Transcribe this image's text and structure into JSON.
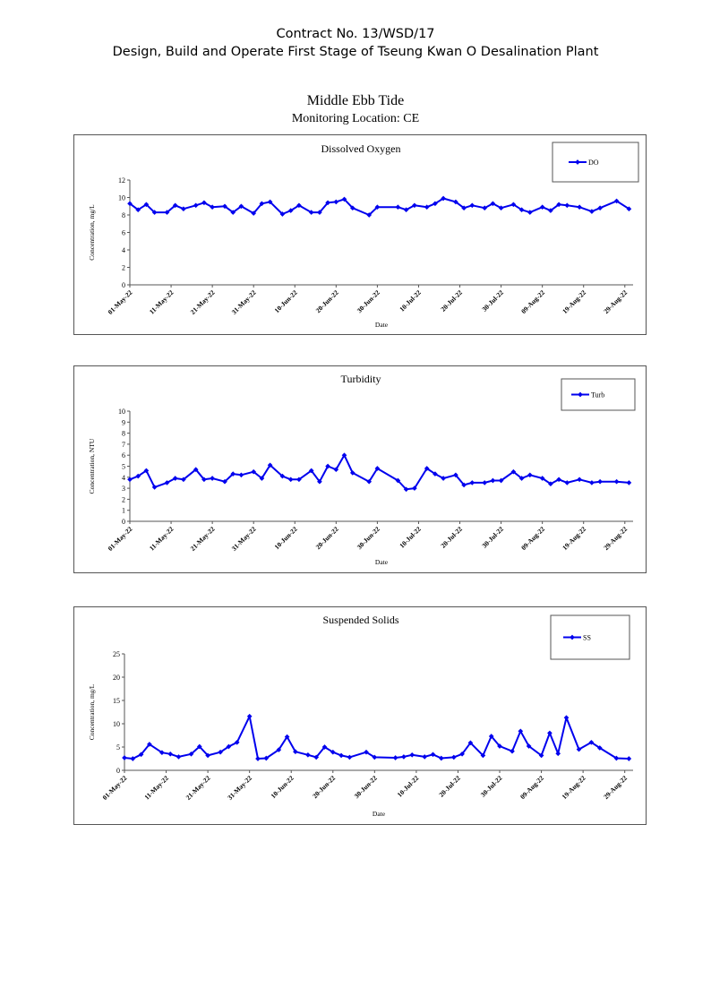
{
  "header": {
    "line1": "Contract No. 13/WSD/17",
    "line2": "Design, Build and Operate First Stage of Tseung Kwan O Desalination Plant"
  },
  "report": {
    "title": "Middle Ebb Tide",
    "subtitle": "Monitoring Location: CE"
  },
  "chart_data": [
    {
      "type": "line",
      "title": "Dissolved Oxygen",
      "xlabel": "Date",
      "ylabel": "Concentration, mg/L",
      "ylim": [
        0,
        12
      ],
      "ytick_step": 2,
      "x_ticks": [
        "01-May-22",
        "11-May-22",
        "21-May-22",
        "31-May-22",
        "10-Jun-22",
        "20-Jun-22",
        "30-Jun-22",
        "10-Jul-22",
        "20-Jul-22",
        "30-Jul-22",
        "09-Aug-22",
        "19-Aug-22",
        "29-Aug-22"
      ],
      "legend_position": "top-right",
      "color": "#0000ee",
      "series": [
        {
          "name": "DO",
          "x": [
            "2022-05-01",
            "2022-05-03",
            "2022-05-05",
            "2022-05-07",
            "2022-05-10",
            "2022-05-12",
            "2022-05-14",
            "2022-05-17",
            "2022-05-19",
            "2022-05-21",
            "2022-05-24",
            "2022-05-26",
            "2022-05-28",
            "2022-05-31",
            "2022-06-02",
            "2022-06-04",
            "2022-06-07",
            "2022-06-09",
            "2022-06-11",
            "2022-06-14",
            "2022-06-16",
            "2022-06-18",
            "2022-06-20",
            "2022-06-22",
            "2022-06-24",
            "2022-06-28",
            "2022-06-30",
            "2022-07-05",
            "2022-07-07",
            "2022-07-09",
            "2022-07-12",
            "2022-07-14",
            "2022-07-16",
            "2022-07-19",
            "2022-07-21",
            "2022-07-23",
            "2022-07-26",
            "2022-07-28",
            "2022-07-30",
            "2022-08-02",
            "2022-08-04",
            "2022-08-06",
            "2022-08-09",
            "2022-08-11",
            "2022-08-13",
            "2022-08-15",
            "2022-08-18",
            "2022-08-21",
            "2022-08-23",
            "2022-08-27",
            "2022-08-30"
          ],
          "y": [
            9.3,
            8.6,
            9.2,
            8.3,
            8.3,
            9.1,
            8.7,
            9.1,
            9.4,
            8.9,
            9.0,
            8.3,
            9.0,
            8.2,
            9.3,
            9.5,
            8.1,
            8.5,
            9.1,
            8.3,
            8.3,
            9.4,
            9.5,
            9.8,
            8.8,
            8.0,
            8.9,
            8.9,
            8.6,
            9.1,
            8.9,
            9.3,
            9.9,
            9.5,
            8.8,
            9.1,
            8.8,
            9.3,
            8.8,
            9.2,
            8.6,
            8.3,
            8.9,
            8.5,
            9.2,
            9.1,
            8.9,
            8.4,
            8.8,
            9.6,
            8.7
          ]
        }
      ]
    },
    {
      "type": "line",
      "title": "Turbidity",
      "xlabel": "Date",
      "ylabel": "Concentration, NTU",
      "ylim": [
        0,
        10
      ],
      "ytick_step": 1,
      "x_ticks": [
        "01-May-22",
        "11-May-22",
        "21-May-22",
        "31-May-22",
        "10-Jun-22",
        "20-Jun-22",
        "30-Jun-22",
        "10-Jul-22",
        "20-Jul-22",
        "30-Jul-22",
        "09-Aug-22",
        "19-Aug-22",
        "29-Aug-22"
      ],
      "legend_position": "top-right",
      "color": "#0000ee",
      "series": [
        {
          "name": "Turb",
          "x": [
            "2022-05-01",
            "2022-05-03",
            "2022-05-05",
            "2022-05-07",
            "2022-05-10",
            "2022-05-12",
            "2022-05-14",
            "2022-05-17",
            "2022-05-19",
            "2022-05-21",
            "2022-05-24",
            "2022-05-26",
            "2022-05-28",
            "2022-05-31",
            "2022-06-02",
            "2022-06-04",
            "2022-06-07",
            "2022-06-09",
            "2022-06-11",
            "2022-06-14",
            "2022-06-16",
            "2022-06-18",
            "2022-06-20",
            "2022-06-22",
            "2022-06-24",
            "2022-06-28",
            "2022-06-30",
            "2022-07-05",
            "2022-07-07",
            "2022-07-09",
            "2022-07-12",
            "2022-07-14",
            "2022-07-16",
            "2022-07-19",
            "2022-07-21",
            "2022-07-23",
            "2022-07-26",
            "2022-07-28",
            "2022-07-30",
            "2022-08-02",
            "2022-08-04",
            "2022-08-06",
            "2022-08-09",
            "2022-08-11",
            "2022-08-13",
            "2022-08-15",
            "2022-08-18",
            "2022-08-21",
            "2022-08-23",
            "2022-08-27",
            "2022-08-30"
          ],
          "y": [
            3.8,
            4.1,
            4.6,
            3.1,
            3.5,
            3.9,
            3.8,
            4.7,
            3.8,
            3.9,
            3.6,
            4.3,
            4.2,
            4.5,
            3.9,
            5.1,
            4.1,
            3.8,
            3.8,
            4.6,
            3.6,
            5.0,
            4.7,
            6.0,
            4.4,
            3.6,
            4.8,
            3.7,
            2.9,
            3.0,
            4.8,
            4.3,
            3.9,
            4.2,
            3.3,
            3.5,
            3.5,
            3.7,
            3.7,
            4.5,
            3.9,
            4.2,
            3.9,
            3.4,
            3.8,
            3.5,
            3.8,
            3.5,
            3.6,
            3.6,
            3.5
          ]
        }
      ]
    },
    {
      "type": "line",
      "title": "Suspended Solids",
      "xlabel": "Date",
      "ylabel": "Concentration, mg/L",
      "ylim": [
        0,
        25
      ],
      "ytick_step": 5,
      "x_ticks": [
        "01-May-22",
        "11-May-22",
        "21-May-22",
        "31-May-22",
        "10-Jun-22",
        "20-Jun-22",
        "30-Jun-22",
        "10-Jul-22",
        "20-Jul-22",
        "30-Jul-22",
        "09-Aug-22",
        "19-Aug-22",
        "29-Aug-22"
      ],
      "legend_position": "top-right",
      "color": "#0000ee",
      "series": [
        {
          "name": "SS",
          "x": [
            "2022-05-01",
            "2022-05-03",
            "2022-05-05",
            "2022-05-07",
            "2022-05-10",
            "2022-05-12",
            "2022-05-14",
            "2022-05-17",
            "2022-05-19",
            "2022-05-21",
            "2022-05-24",
            "2022-05-26",
            "2022-05-28",
            "2022-05-31",
            "2022-06-02",
            "2022-06-04",
            "2022-06-07",
            "2022-06-09",
            "2022-06-11",
            "2022-06-14",
            "2022-06-16",
            "2022-06-18",
            "2022-06-20",
            "2022-06-22",
            "2022-06-24",
            "2022-06-28",
            "2022-06-30",
            "2022-07-05",
            "2022-07-07",
            "2022-07-09",
            "2022-07-12",
            "2022-07-14",
            "2022-07-16",
            "2022-07-19",
            "2022-07-21",
            "2022-07-23",
            "2022-07-26",
            "2022-07-28",
            "2022-07-30",
            "2022-08-02",
            "2022-08-04",
            "2022-08-06",
            "2022-08-09",
            "2022-08-11",
            "2022-08-13",
            "2022-08-15",
            "2022-08-18",
            "2022-08-21",
            "2022-08-23",
            "2022-08-27",
            "2022-08-30"
          ],
          "y": [
            2.7,
            2.5,
            3.4,
            5.6,
            3.8,
            3.5,
            2.9,
            3.5,
            5.1,
            3.2,
            3.9,
            5.1,
            6.0,
            11.6,
            2.5,
            2.6,
            4.4,
            7.2,
            4.0,
            3.3,
            2.8,
            5.0,
            3.9,
            3.2,
            2.8,
            3.9,
            2.8,
            2.7,
            2.9,
            3.3,
            2.9,
            3.4,
            2.6,
            2.8,
            3.5,
            5.9,
            3.2,
            7.3,
            5.2,
            4.1,
            8.4,
            5.2,
            3.2,
            8.0,
            3.6,
            11.3,
            4.5,
            6.0,
            4.8,
            2.6,
            2.5
          ]
        }
      ]
    }
  ]
}
